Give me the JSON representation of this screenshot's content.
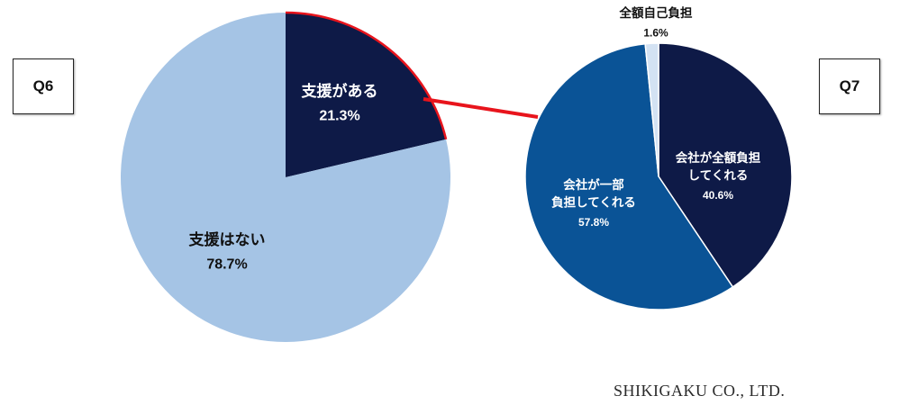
{
  "q6_label": "Q6",
  "q7_label": "Q7",
  "brand": "SHIKIGAKU CO., LTD.",
  "chart_data": [
    {
      "type": "pie",
      "question": "Q6",
      "slices": [
        {
          "label": "支援がある",
          "value": 21.3,
          "value_label": "21.3%",
          "color": "#0e1a47",
          "text_color": "#ffffff",
          "highlight": "#e8141c"
        },
        {
          "label": "支援はない",
          "value": 78.7,
          "value_label": "78.7%",
          "color": "#a5c4e5",
          "text_color": "#111111"
        }
      ]
    },
    {
      "type": "pie",
      "question": "Q7",
      "slices": [
        {
          "label": "会社が全額負担\nしてくれる",
          "value": 40.6,
          "value_label": "40.6%",
          "color": "#0e1a47",
          "text_color": "#ffffff"
        },
        {
          "label": "会社が一部\n負担してくれる",
          "value": 57.8,
          "value_label": "57.8%",
          "color": "#0a5396",
          "text_color": "#ffffff"
        },
        {
          "label": "全額自己負担",
          "value": 1.6,
          "value_label": "1.6%",
          "color": "#d3e2f3",
          "text_color": "#111111"
        }
      ]
    }
  ],
  "connector_color": "#e8141c"
}
